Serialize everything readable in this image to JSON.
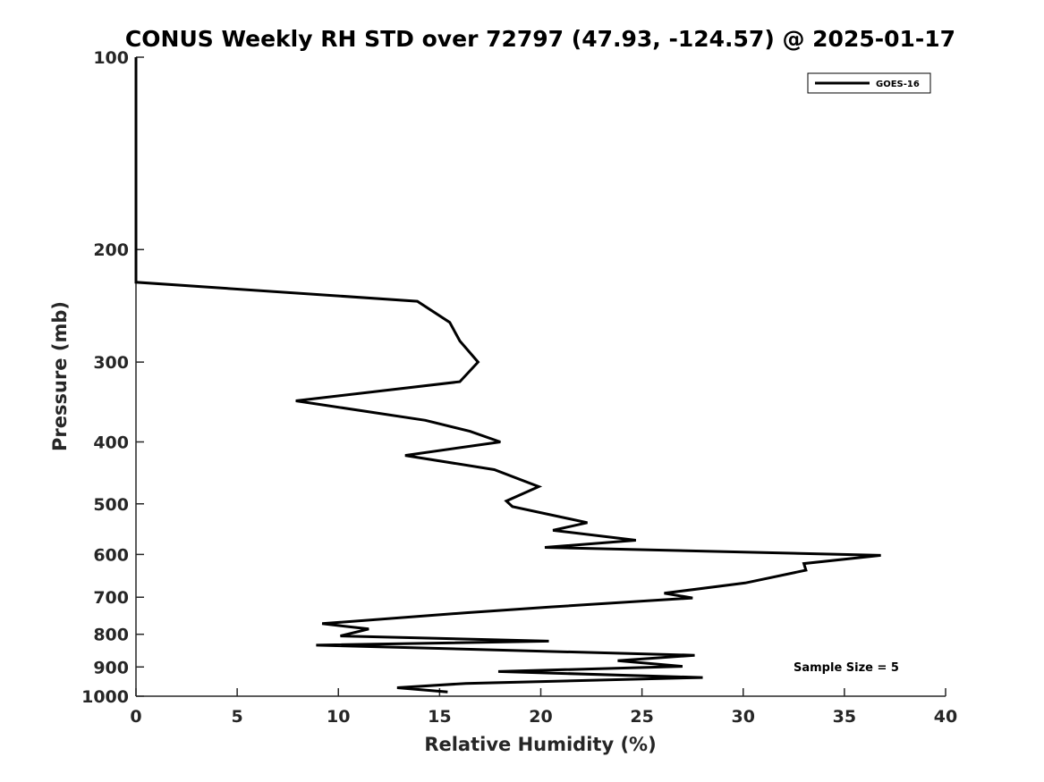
{
  "chart_data": {
    "type": "line",
    "title": "CONUS Weekly RH STD over 72797 (47.93, -124.57) @ 2025-01-17",
    "xlabel": "Relative Humidity (%)",
    "ylabel": "Pressure (mb)",
    "xlim": [
      0,
      40
    ],
    "ylim": [
      100,
      1000
    ],
    "y_scale": "log",
    "y_reversed": true,
    "x_ticks": [
      0,
      5,
      10,
      15,
      20,
      25,
      30,
      35,
      40
    ],
    "y_ticks": [
      100,
      200,
      300,
      400,
      500,
      600,
      700,
      800,
      900,
      1000
    ],
    "grid": false,
    "legend_position": "top-right",
    "series": [
      {
        "name": "GOES-16",
        "color": "#000000",
        "points": [
          [
            0,
            100
          ],
          [
            0,
            150
          ],
          [
            0,
            200
          ],
          [
            0,
            225
          ],
          [
            13.9,
            241
          ],
          [
            15.5,
            260
          ],
          [
            16.0,
            278
          ],
          [
            16.9,
            300
          ],
          [
            16.0,
            322
          ],
          [
            7.9,
            345
          ],
          [
            14.3,
            370
          ],
          [
            16.5,
            385
          ],
          [
            18.0,
            400
          ],
          [
            13.3,
            420
          ],
          [
            17.7,
            442
          ],
          [
            19.9,
            470
          ],
          [
            18.3,
            495
          ],
          [
            18.6,
            505
          ],
          [
            22.3,
            535
          ],
          [
            20.6,
            550
          ],
          [
            24.7,
            570
          ],
          [
            20.2,
            585
          ],
          [
            36.8,
            602
          ],
          [
            33.0,
            620
          ],
          [
            33.1,
            635
          ],
          [
            30.1,
            665
          ],
          [
            26.1,
            690
          ],
          [
            27.5,
            702
          ],
          [
            20.5,
            725
          ],
          [
            16.4,
            740
          ],
          [
            9.2,
            770
          ],
          [
            11.5,
            785
          ],
          [
            10.1,
            805
          ],
          [
            20.4,
            820
          ],
          [
            8.9,
            832
          ],
          [
            27.6,
            863
          ],
          [
            23.8,
            880
          ],
          [
            27.0,
            898
          ],
          [
            17.9,
            915
          ],
          [
            28.0,
            935
          ],
          [
            16.3,
            955
          ],
          [
            12.9,
            970
          ],
          [
            15.4,
            985
          ]
        ]
      }
    ],
    "annotations": [
      "Sample Size = 5"
    ]
  }
}
